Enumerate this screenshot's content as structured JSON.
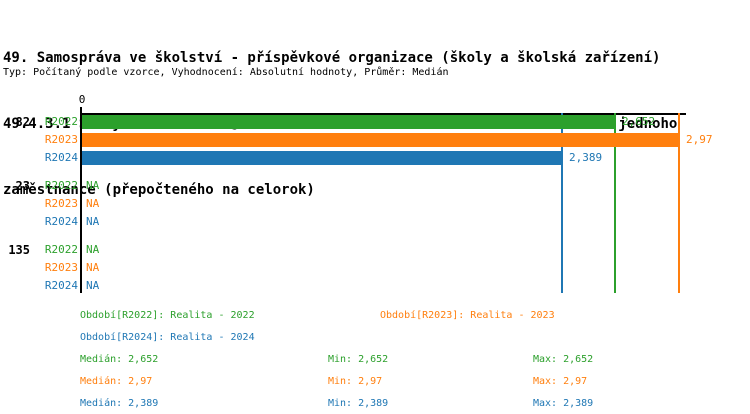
{
  "header": {
    "title_lines": [
      "49. Samospráva ve školství - příspěvkové organizace (školy a školská zařízení)",
      "49.4.3.1 Školy zřízené dle § 16 odst. 9 školského zákona - Počet žáků na jednoho",
      "zaměstnance (přepočteného na celorok)"
    ],
    "meta": "Typ: Počítaný podle vzorce, Vyhodnocení: Absolutní hodnoty, Průměr: Medián"
  },
  "colors": {
    "green_2022": "#2ca02c",
    "orange_2023": "#ff7f0e",
    "blue_2024": "#1f77b4",
    "axis": "#000000"
  },
  "chart_data": {
    "type": "bar",
    "orientation": "horizontal",
    "axis": {
      "origin_label": "0",
      "xmin": 0,
      "xmax": 3.31,
      "grid": false
    },
    "groups": [
      {
        "label": "82",
        "rows": [
          {
            "year": "R2022",
            "value": 2.652,
            "value_label": "2,652",
            "color": "#2ca02c"
          },
          {
            "year": "R2023",
            "value": 2.97,
            "value_label": "2,97",
            "color": "#ff7f0e"
          },
          {
            "year": "R2024",
            "value": 2.389,
            "value_label": "2,389",
            "color": "#1f77b4"
          }
        ]
      },
      {
        "label": "23",
        "rows": [
          {
            "year": "R2022",
            "value": null,
            "value_label": "NA",
            "color": "#2ca02c"
          },
          {
            "year": "R2023",
            "value": null,
            "value_label": "NA",
            "color": "#ff7f0e"
          },
          {
            "year": "R2024",
            "value": null,
            "value_label": "NA",
            "color": "#1f77b4"
          }
        ]
      },
      {
        "label": "135",
        "rows": [
          {
            "year": "R2022",
            "value": null,
            "value_label": "NA",
            "color": "#2ca02c"
          },
          {
            "year": "R2023",
            "value": null,
            "value_label": "NA",
            "color": "#ff7f0e"
          },
          {
            "year": "R2024",
            "value": null,
            "value_label": "NA",
            "color": "#1f77b4"
          }
        ]
      }
    ],
    "median_lines": [
      {
        "value": 2.652,
        "color": "#2ca02c"
      },
      {
        "value": 2.97,
        "color": "#ff7f0e"
      },
      {
        "value": 2.389,
        "color": "#1f77b4"
      }
    ]
  },
  "legend": {
    "items": [
      {
        "text": "Období[R2022]: Realita - 2022",
        "color": "#2ca02c"
      },
      {
        "text": "Období[R2023]: Realita - 2023",
        "color": "#ff7f0e"
      },
      {
        "text": "Období[R2024]: Realita - 2024",
        "color": "#1f77b4"
      }
    ],
    "stats": [
      {
        "median": "Medián: 2,652",
        "min": "Min: 2,652",
        "max": "Max: 2,652"
      },
      {
        "median": "Medián: 2,97",
        "min": "Min: 2,97",
        "max": "Max: 2,97"
      },
      {
        "median": "Medián: 2,389",
        "min": "Min: 2,389",
        "max": "Max: 2,389"
      }
    ]
  }
}
